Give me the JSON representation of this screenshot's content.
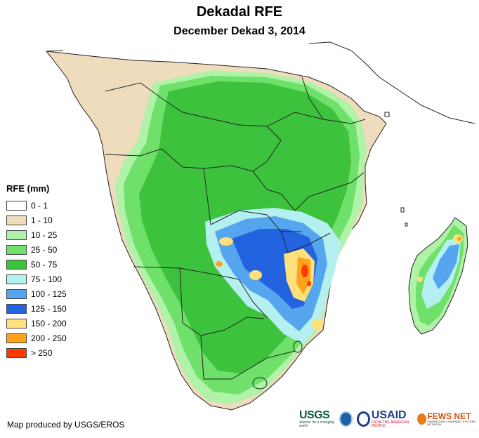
{
  "title": "Dekadal RFE",
  "subtitle": "December Dekad 3, 2014",
  "legend": {
    "title": "RFE (mm)",
    "items": [
      {
        "label": "0 - 1",
        "color": "#ffffff"
      },
      {
        "label": "1 - 10",
        "color": "#eedcbd"
      },
      {
        "label": "10 - 25",
        "color": "#b0f2a8"
      },
      {
        "label": "25 - 50",
        "color": "#6fe06a"
      },
      {
        "label": "50 - 75",
        "color": "#3dc23d"
      },
      {
        "label": "75 - 100",
        "color": "#b4f0f0"
      },
      {
        "label": "100 - 125",
        "color": "#55a6ee"
      },
      {
        "label": "125 - 150",
        "color": "#2363e0"
      },
      {
        "label": "150 - 200",
        "color": "#ffe07a"
      },
      {
        "label": "200 - 250",
        "color": "#ffa21c"
      },
      {
        "label": "> 250",
        "color": "#ff3a00"
      }
    ]
  },
  "credit": "Map produced by USGS/EROS",
  "logos": {
    "usgs": "USGS",
    "usgs_tag": "science for a changing world",
    "usaid": "USAID",
    "usaid_tag": "FROM THE AMERICAN PEOPLE",
    "fews": "FEWS NET",
    "fews_tag": "FAMINE EARLY WARNING SYSTEMS NETWORK"
  }
}
